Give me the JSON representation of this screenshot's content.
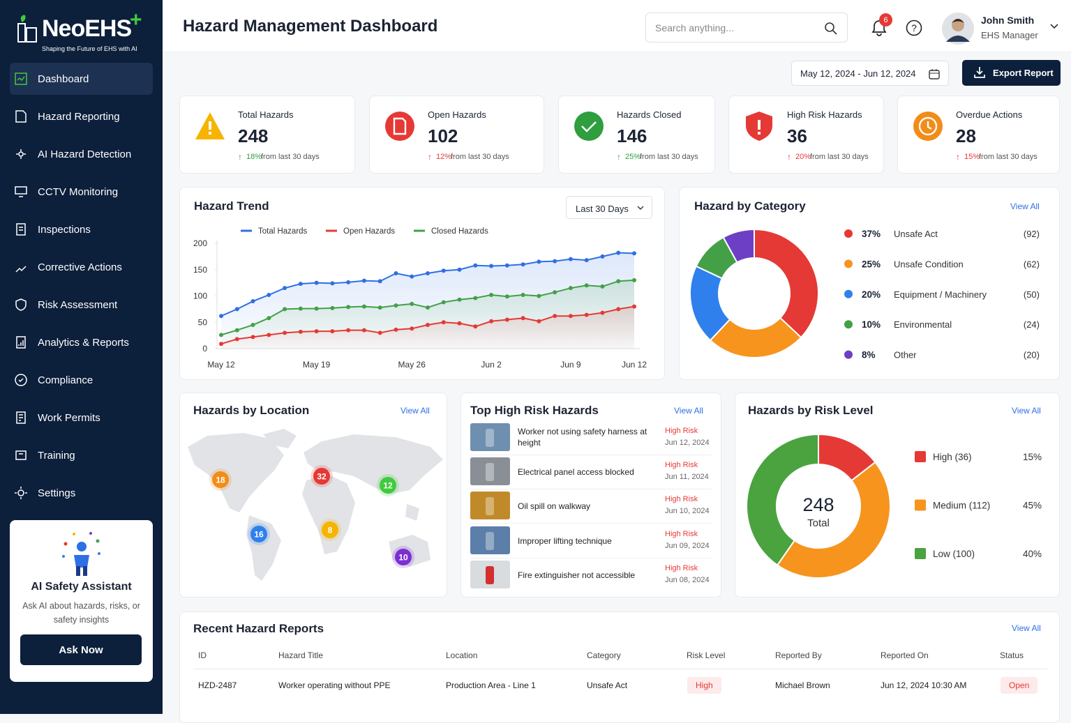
{
  "sidebar": {
    "logo": "NeoEHS",
    "tagline": "Shaping the Future of EHS with AI",
    "menu": [
      "Dashboard",
      "Hazard Reporting",
      "AI Hazard Detection",
      "CCTV Monitoring",
      "Inspections",
      "Corrective Actions",
      "Risk Assessment",
      "Analytics & Reports",
      "Compliance",
      "Work Permits",
      "Training",
      "Settings"
    ],
    "assistant": {
      "title": "AI Safety Assistant",
      "text": "Ask AI about hazards, risks, or safety insights",
      "button": "Ask Now"
    }
  },
  "header": {
    "title": "Hazard Management Dashboard",
    "search_placeholder": "Search anything...",
    "notifications": 6,
    "user_name": "John Smith",
    "user_role": "EHS Manager"
  },
  "toolbar": {
    "date_range": "May 12, 2024 - Jun 12, 2024",
    "export": "Export Report"
  },
  "kpis": [
    {
      "label": "Total Hazards",
      "value": 248,
      "change": "18%",
      "note": "from last 30 days",
      "color": "#f6b400"
    },
    {
      "label": "Open Hazards",
      "value": 102,
      "change": "12%",
      "note": "from last 30 days",
      "color": "#e53935"
    },
    {
      "label": "Hazards Closed",
      "value": 146,
      "change": "25%",
      "note": "from last 30 days",
      "color": "#2e9e3e"
    },
    {
      "label": "High Risk Hazards",
      "value": 36,
      "change": "20%",
      "note": "from last 30 days",
      "color": "#e53935"
    },
    {
      "label": "Overdue Actions",
      "value": 28,
      "change": "15%",
      "note": "from last 30 days",
      "color": "#f28c18"
    }
  ],
  "hazard_trend": {
    "type": "line",
    "title": "Hazard Trend",
    "filter": "Last 30 Days",
    "categories": [
      "May 12",
      null,
      null,
      null,
      null,
      null,
      "May 19",
      null,
      null,
      null,
      null,
      null,
      "May 26",
      null,
      null,
      null,
      null,
      "Jun 2",
      null,
      null,
      null,
      null,
      "Jun 9",
      null,
      null,
      null,
      "Jun 12"
    ],
    "series": [
      {
        "name": "Total Hazards",
        "color": "#2f6fe4",
        "values": [
          62,
          75,
          90,
          102,
          115,
          123,
          125,
          124,
          126,
          129,
          128,
          143,
          137,
          143,
          148,
          150,
          158,
          157,
          158,
          160,
          165,
          166,
          170,
          168,
          175,
          182,
          181
        ]
      },
      {
        "name": "Open Hazards",
        "color": "#e53935",
        "values": [
          9,
          18,
          22,
          26,
          30,
          32,
          33,
          33,
          35,
          35,
          30,
          36,
          38,
          45,
          50,
          48,
          42,
          52,
          55,
          58,
          52,
          62,
          62,
          64,
          68,
          75,
          80
        ]
      },
      {
        "name": "Closed Hazards",
        "color": "#43a047",
        "values": [
          26,
          35,
          45,
          58,
          75,
          76,
          76,
          77,
          79,
          80,
          78,
          82,
          85,
          78,
          88,
          93,
          96,
          102,
          99,
          102,
          100,
          107,
          115,
          120,
          118,
          128,
          130
        ]
      }
    ],
    "ylim": [
      0,
      200
    ],
    "yticks": [
      0,
      50,
      100,
      150,
      200
    ],
    "grid": false
  },
  "hazard_by_category": {
    "type": "donut",
    "title": "Hazard by Category",
    "link": "View All",
    "categories": [
      "Unsafe Act",
      "Unsafe Condition",
      "Equipment / Machinery",
      "Environmental",
      "Other"
    ],
    "values": [
      37,
      25,
      20,
      10,
      8
    ],
    "value_labels": [
      "37%",
      "25%",
      "20%",
      "10%",
      "8%"
    ],
    "counts": [
      92,
      62,
      50,
      24,
      20
    ],
    "count_labels": [
      "(92)",
      "(62)",
      "(50)",
      "(24)",
      "(20)"
    ],
    "colors": [
      "#e53935",
      "#f7941d",
      "#2f80ed",
      "#43a047",
      "#6c3fc5"
    ]
  },
  "hazards_by_location": {
    "title": "Hazards by Location",
    "link": "View All",
    "markers": [
      {
        "count": 18,
        "color": "#f28c18"
      },
      {
        "count": 32,
        "color": "#e53935"
      },
      {
        "count": 12,
        "color": "#3ecb3e"
      },
      {
        "count": 16,
        "color": "#2f80ed"
      },
      {
        "count": 8,
        "color": "#f6b400"
      },
      {
        "count": 10,
        "color": "#7b2fd0"
      }
    ]
  },
  "top_high_risk": {
    "title": "Top High Risk Hazards",
    "link": "View All",
    "items": [
      {
        "title": "Worker not using safety harness at height",
        "risk": "High Risk",
        "date": "Jun 12, 2024"
      },
      {
        "title": "Electrical panel access blocked",
        "risk": "High Risk",
        "date": "Jun 11, 2024"
      },
      {
        "title": "Oil spill on walkway",
        "risk": "High Risk",
        "date": "Jun 10, 2024"
      },
      {
        "title": "Improper lifting technique",
        "risk": "High Risk",
        "date": "Jun 09, 2024"
      },
      {
        "title": "Fire extinguisher not accessible",
        "risk": "High Risk",
        "date": "Jun 08, 2024"
      }
    ]
  },
  "hazards_by_risk_level": {
    "type": "donut",
    "title": "Hazards by Risk Level",
    "link": "View All",
    "center_value": 248,
    "center_label": "Total",
    "labels": [
      "High (36)",
      "Medium (112)",
      "Low (100)"
    ],
    "values": [
      36,
      112,
      100
    ],
    "percents": [
      15,
      45,
      40
    ],
    "percent_labels": [
      "15%",
      "45%",
      "40%"
    ],
    "colors": [
      "#e53935",
      "#f7941d",
      "#4aa33f"
    ]
  },
  "recent_reports": {
    "title": "Recent Hazard Reports",
    "link": "View All",
    "columns": [
      "ID",
      "Hazard Title",
      "Location",
      "Category",
      "Risk Level",
      "Reported By",
      "Reported On",
      "Status"
    ],
    "rows": [
      [
        "HZD-2487",
        "Worker operating without PPE",
        "Production Area - Line 1",
        "Unsafe Act",
        "High",
        "Michael Brown",
        "Jun 12, 2024 10:30 AM",
        "Open"
      ]
    ]
  }
}
